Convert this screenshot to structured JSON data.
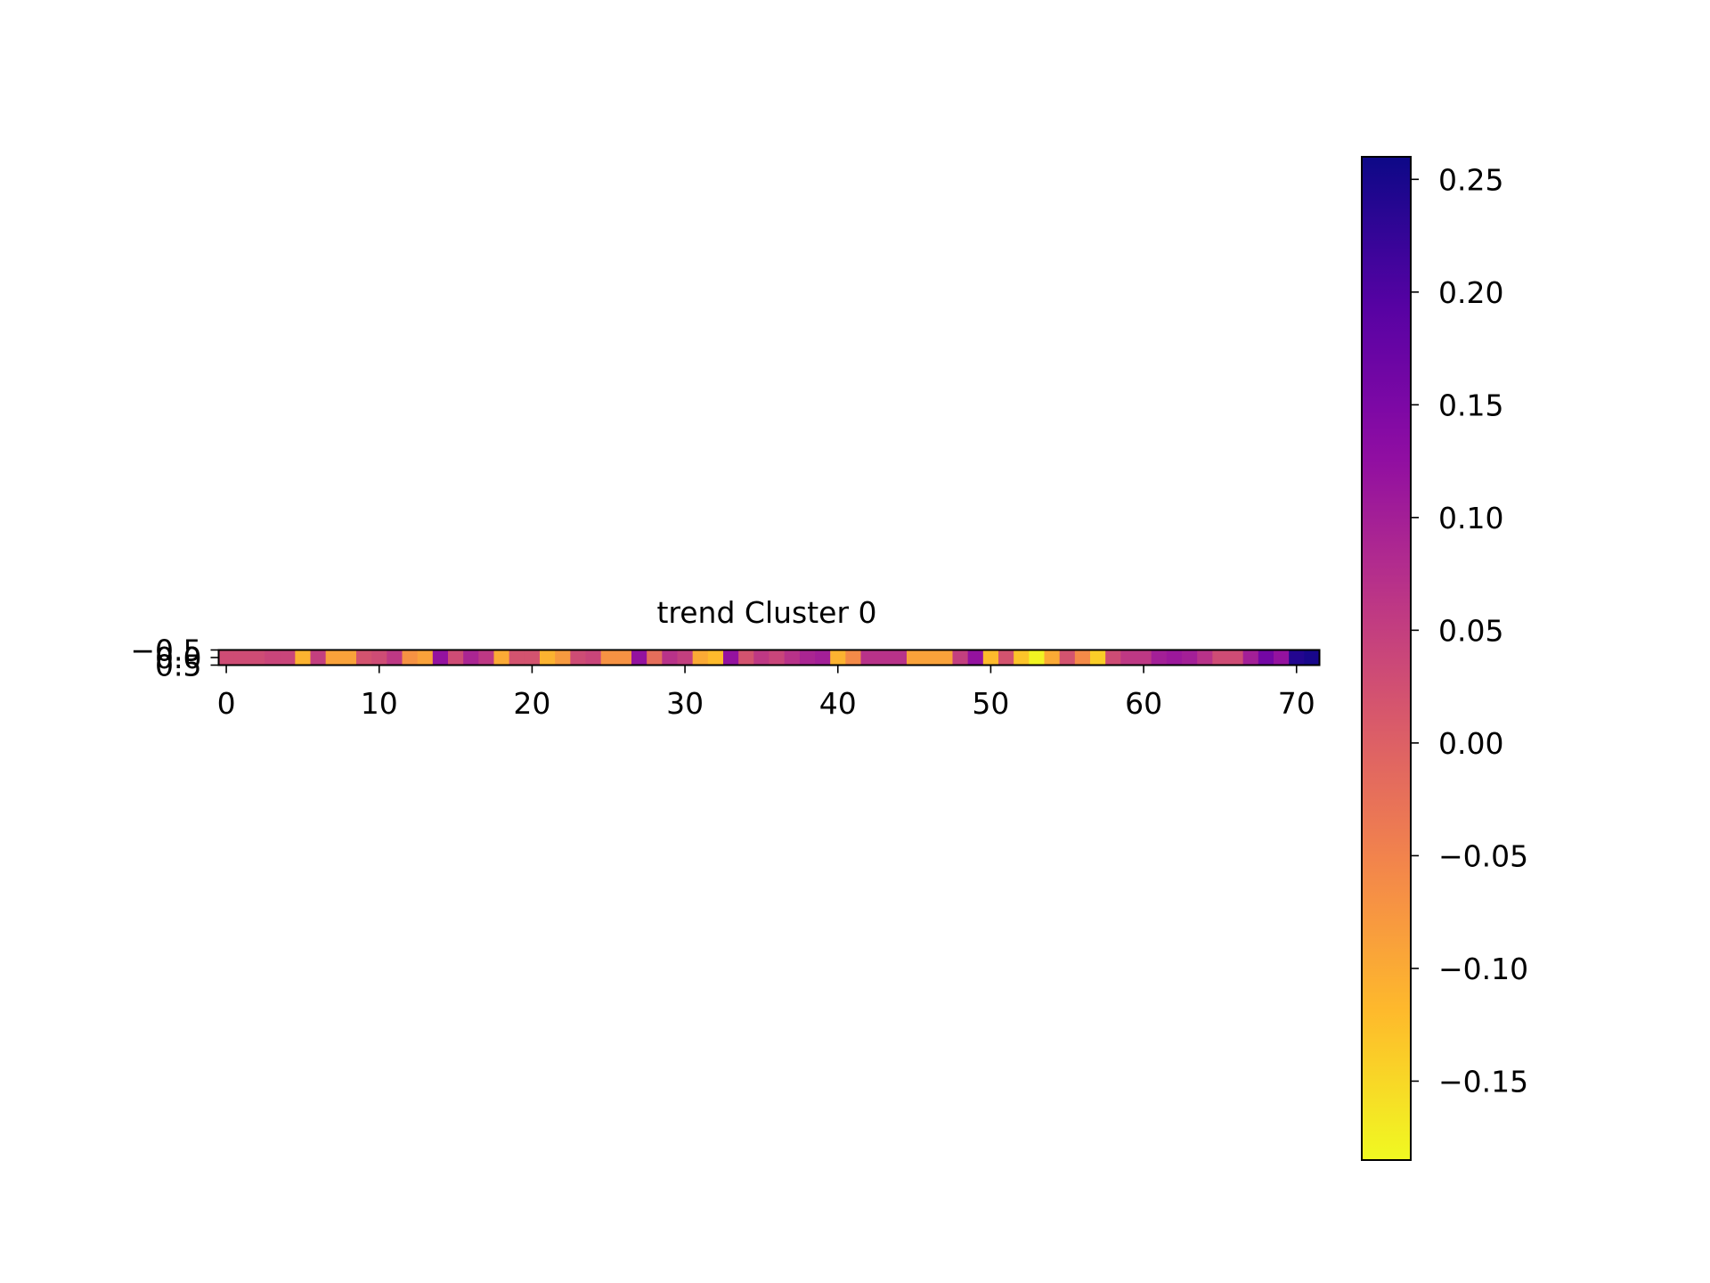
{
  "chart_data": {
    "type": "heatmap",
    "title": "trend Cluster 0",
    "colormap": "plasma_r",
    "x_range": [
      -0.5,
      71.5
    ],
    "y_range": [
      -0.5,
      0.5
    ],
    "xticks": [
      0,
      10,
      20,
      30,
      40,
      50,
      60,
      70
    ],
    "xtick_labels": [
      "0",
      "10",
      "20",
      "30",
      "40",
      "50",
      "60",
      "70"
    ],
    "yticks": [
      -0.5,
      0.0,
      0.5
    ],
    "ytick_labels": [
      "−0.5",
      "0.0",
      "0.5"
    ],
    "colorbar": {
      "range": [
        -0.185,
        0.26
      ],
      "ticks": [
        0.25,
        0.2,
        0.15,
        0.1,
        0.05,
        0.0,
        -0.05,
        -0.1,
        -0.15
      ],
      "tick_labels": [
        "0.25",
        "0.20",
        "0.15",
        "0.10",
        "0.05",
        "0.00",
        "−0.05",
        "−0.10",
        "−0.15"
      ]
    },
    "values": [
      [
        0.03,
        0.03,
        0.03,
        0.04,
        0.04,
        -0.11,
        0.05,
        -0.09,
        -0.09,
        0.02,
        0.03,
        0.06,
        -0.07,
        -0.09,
        0.12,
        0.03,
        0.09,
        0.06,
        -0.1,
        0.02,
        0.02,
        -0.11,
        -0.08,
        0.03,
        0.04,
        -0.07,
        -0.07,
        0.12,
        -0.02,
        0.07,
        0.05,
        -0.1,
        -0.12,
        0.12,
        0.02,
        0.06,
        0.04,
        0.07,
        0.09,
        0.1,
        -0.11,
        -0.06,
        0.07,
        0.07,
        0.07,
        -0.09,
        -0.09,
        -0.09,
        0.05,
        0.12,
        -0.12,
        0.02,
        -0.13,
        -0.18,
        -0.1,
        0.02,
        -0.06,
        -0.14,
        0.03,
        0.06,
        0.06,
        0.1,
        0.11,
        0.1,
        0.07,
        0.03,
        0.03,
        0.1,
        0.16,
        0.12,
        0.24,
        0.25
      ]
    ]
  }
}
